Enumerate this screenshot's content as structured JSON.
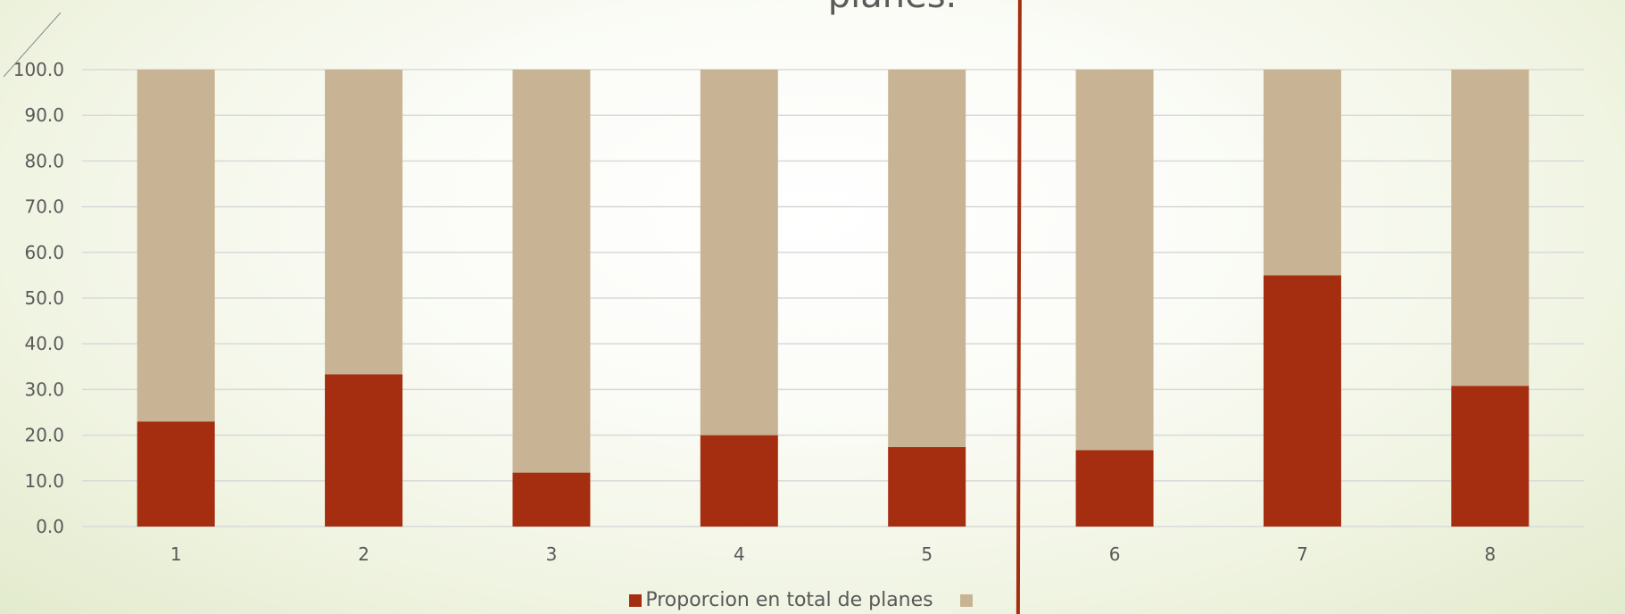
{
  "title": "planes.",
  "colors": {
    "series1": "#a52d10",
    "series2": "#c8b494",
    "grid": "#d9d9d9",
    "axis_text": "#595959",
    "divider": "#a52d10"
  },
  "legend": {
    "placement": "bottom",
    "items": [
      {
        "label": "Proporcion en total de planes",
        "color": "#a52d10"
      },
      {
        "label": "",
        "color": "#c8b494"
      }
    ]
  },
  "chart_data": {
    "type": "bar",
    "stacked": true,
    "categories": [
      "1",
      "2",
      "3",
      "4",
      "5",
      "6",
      "7",
      "8"
    ],
    "series": [
      {
        "name": "Proporcion en total de planes",
        "values": [
          23.0,
          33.3,
          11.8,
          20.0,
          17.4,
          16.7,
          55.0,
          30.8
        ]
      },
      {
        "values": [
          77.0,
          66.7,
          88.2,
          80.0,
          82.6,
          83.3,
          45.0,
          69.2
        ]
      }
    ],
    "ylim": [
      0,
      100
    ],
    "yticks": [
      "0.0",
      "10.0",
      "20.0",
      "30.0",
      "40.0",
      "50.0",
      "60.0",
      "70.0",
      "80.0",
      "90.0",
      "100.0"
    ],
    "grid": true,
    "divider_after_category": "5",
    "xlabel": "",
    "ylabel": ""
  }
}
